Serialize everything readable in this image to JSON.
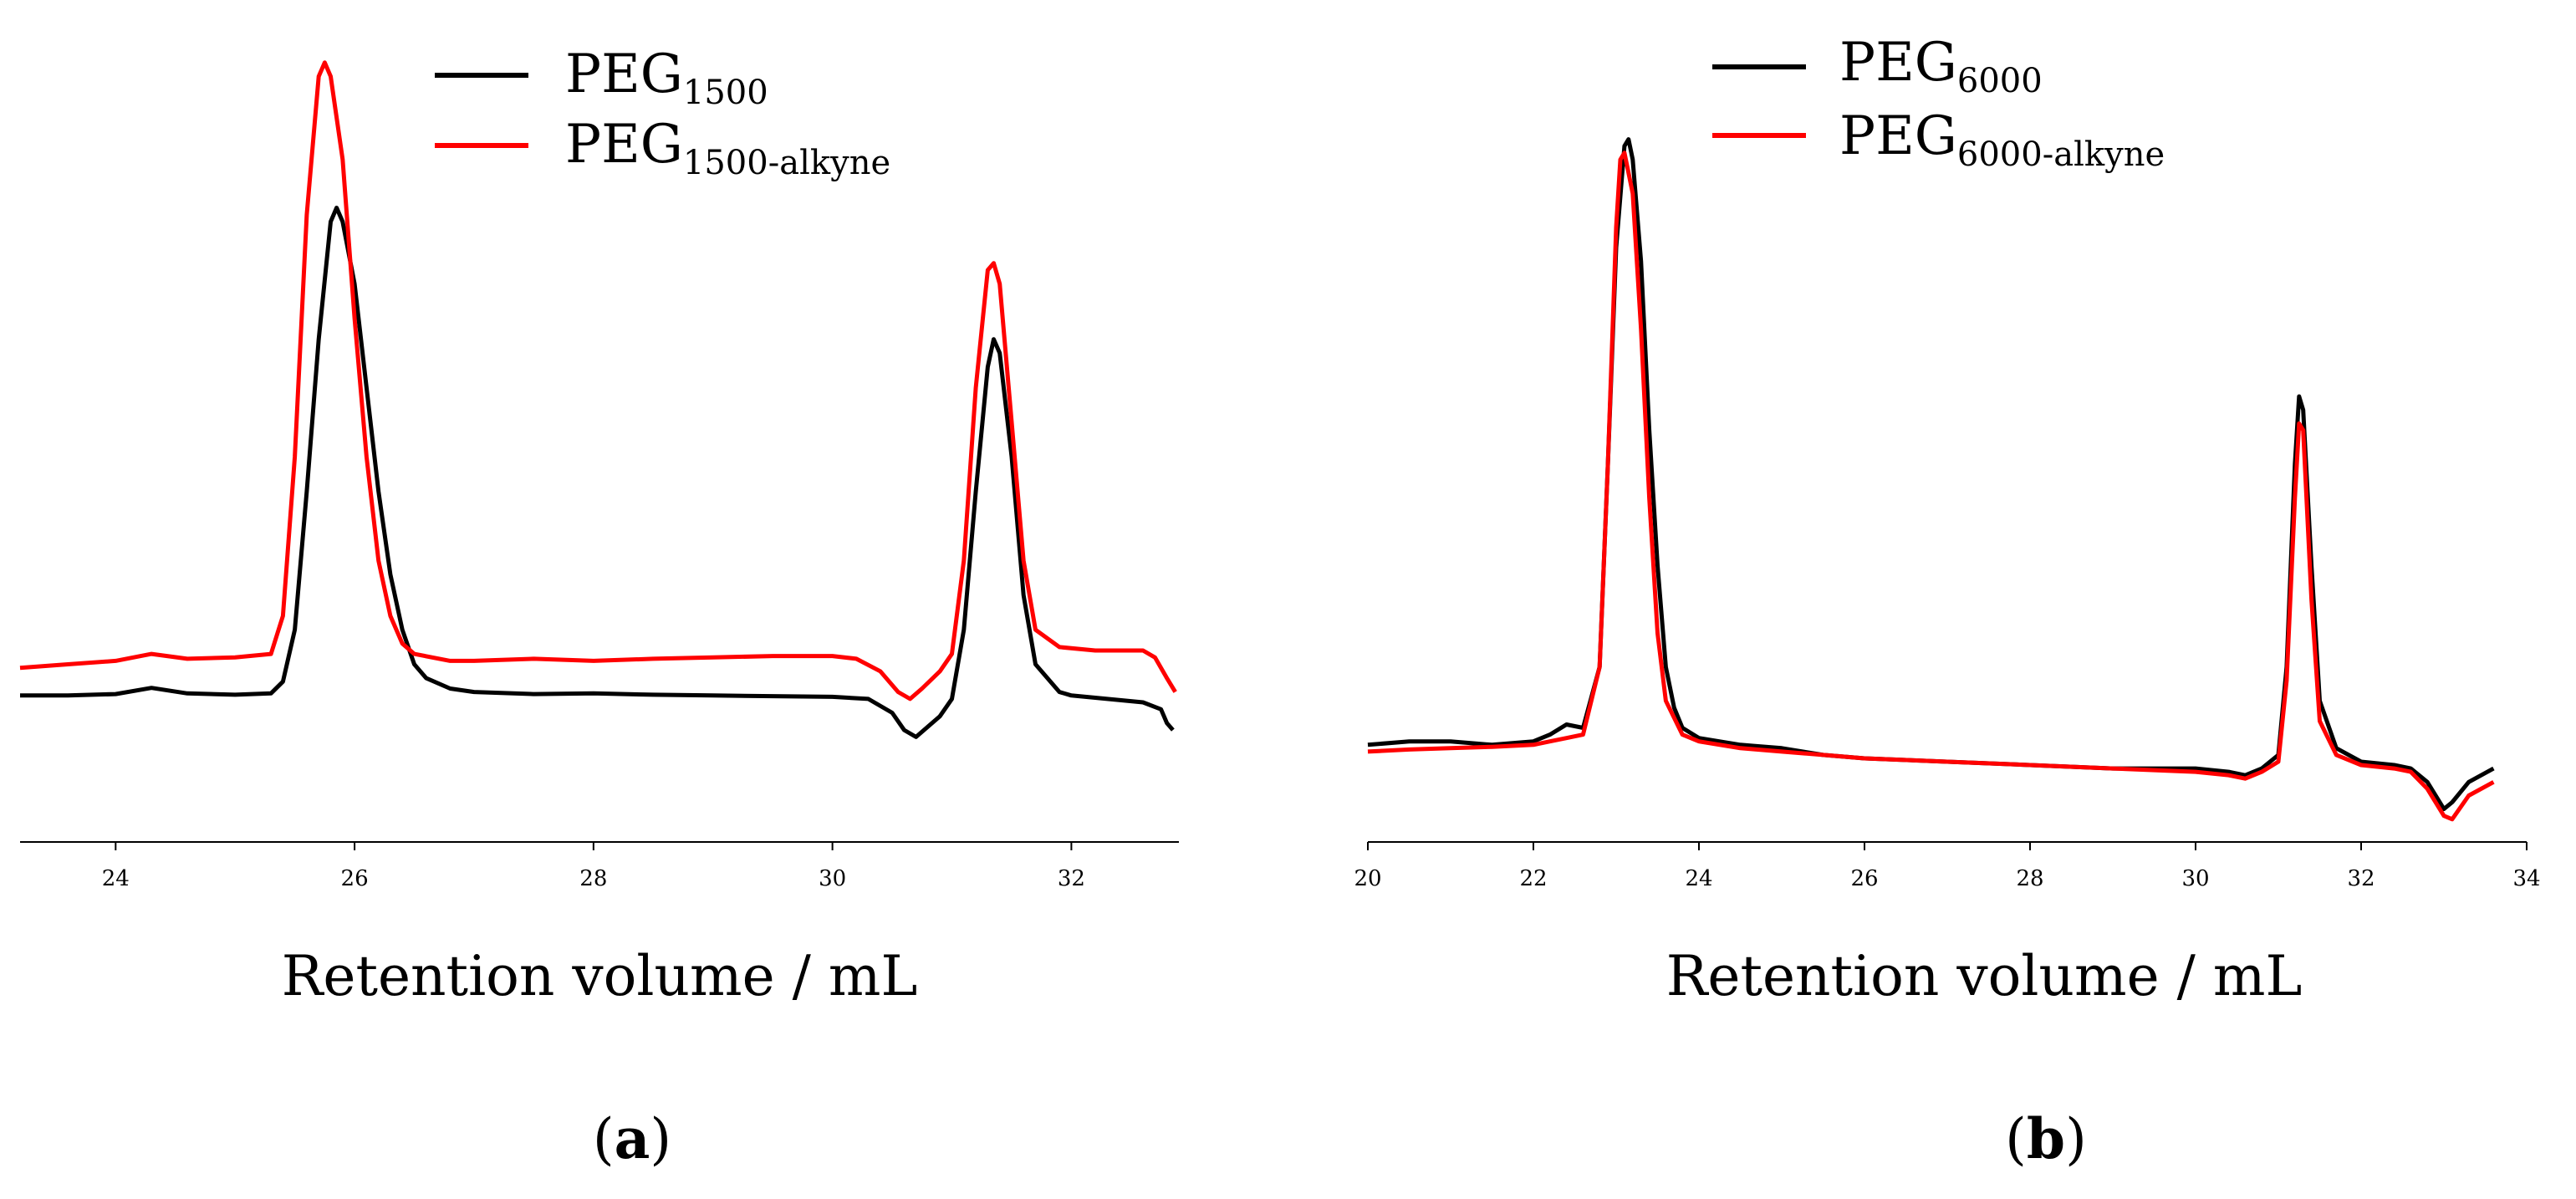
{
  "chart_data": [
    {
      "type": "line",
      "panel": "a",
      "xlabel": "Retention volume / mL",
      "ylabel": "",
      "xlim": [
        23.2,
        32.9
      ],
      "ylim": [
        -0.05,
        1.05
      ],
      "xticks": [
        24,
        26,
        28,
        30,
        32
      ],
      "grid": false,
      "legend_position": "top-center",
      "series": [
        {
          "name": "PEG",
          "subscript": "1500",
          "color": "#000000",
          "points": [
            [
              23.2,
              0.105
            ],
            [
              23.6,
              0.105
            ],
            [
              24.0,
              0.107
            ],
            [
              24.3,
              0.116
            ],
            [
              24.6,
              0.108
            ],
            [
              25.0,
              0.106
            ],
            [
              25.3,
              0.108
            ],
            [
              25.4,
              0.125
            ],
            [
              25.5,
              0.2
            ],
            [
              25.6,
              0.4
            ],
            [
              25.7,
              0.62
            ],
            [
              25.8,
              0.79
            ],
            [
              25.85,
              0.81
            ],
            [
              25.9,
              0.79
            ],
            [
              26.0,
              0.7
            ],
            [
              26.1,
              0.55
            ],
            [
              26.2,
              0.4
            ],
            [
              26.3,
              0.28
            ],
            [
              26.4,
              0.2
            ],
            [
              26.5,
              0.15
            ],
            [
              26.6,
              0.13
            ],
            [
              26.8,
              0.115
            ],
            [
              27.0,
              0.11
            ],
            [
              27.5,
              0.107
            ],
            [
              28.0,
              0.108
            ],
            [
              28.5,
              0.106
            ],
            [
              29.0,
              0.105
            ],
            [
              29.5,
              0.104
            ],
            [
              30.0,
              0.103
            ],
            [
              30.3,
              0.1
            ],
            [
              30.5,
              0.08
            ],
            [
              30.6,
              0.055
            ],
            [
              30.7,
              0.045
            ],
            [
              30.8,
              0.06
            ],
            [
              30.9,
              0.075
            ],
            [
              31.0,
              0.1
            ],
            [
              31.1,
              0.2
            ],
            [
              31.2,
              0.4
            ],
            [
              31.3,
              0.58
            ],
            [
              31.35,
              0.62
            ],
            [
              31.4,
              0.6
            ],
            [
              31.5,
              0.45
            ],
            [
              31.6,
              0.25
            ],
            [
              31.7,
              0.15
            ],
            [
              31.9,
              0.11
            ],
            [
              32.0,
              0.105
            ],
            [
              32.3,
              0.1
            ],
            [
              32.6,
              0.095
            ],
            [
              32.75,
              0.085
            ],
            [
              32.8,
              0.065
            ],
            [
              32.85,
              0.055
            ]
          ]
        },
        {
          "name": "PEG",
          "subscript": "1500-alkyne",
          "color": "#ff0000",
          "points": [
            [
              23.2,
              0.145
            ],
            [
              23.6,
              0.15
            ],
            [
              24.0,
              0.155
            ],
            [
              24.3,
              0.165
            ],
            [
              24.6,
              0.158
            ],
            [
              25.0,
              0.16
            ],
            [
              25.3,
              0.165
            ],
            [
              25.4,
              0.22
            ],
            [
              25.5,
              0.45
            ],
            [
              25.6,
              0.8
            ],
            [
              25.7,
              1.0
            ],
            [
              25.75,
              1.02
            ],
            [
              25.8,
              1.0
            ],
            [
              25.9,
              0.88
            ],
            [
              26.0,
              0.65
            ],
            [
              26.1,
              0.45
            ],
            [
              26.2,
              0.3
            ],
            [
              26.3,
              0.22
            ],
            [
              26.4,
              0.18
            ],
            [
              26.5,
              0.165
            ],
            [
              26.8,
              0.155
            ],
            [
              27.0,
              0.155
            ],
            [
              27.5,
              0.158
            ],
            [
              28.0,
              0.155
            ],
            [
              28.5,
              0.158
            ],
            [
              29.0,
              0.16
            ],
            [
              29.5,
              0.162
            ],
            [
              30.0,
              0.162
            ],
            [
              30.2,
              0.158
            ],
            [
              30.4,
              0.14
            ],
            [
              30.55,
              0.11
            ],
            [
              30.65,
              0.1
            ],
            [
              30.75,
              0.115
            ],
            [
              30.9,
              0.14
            ],
            [
              31.0,
              0.165
            ],
            [
              31.1,
              0.3
            ],
            [
              31.2,
              0.55
            ],
            [
              31.3,
              0.72
            ],
            [
              31.35,
              0.73
            ],
            [
              31.4,
              0.7
            ],
            [
              31.5,
              0.5
            ],
            [
              31.6,
              0.3
            ],
            [
              31.7,
              0.2
            ],
            [
              31.9,
              0.175
            ],
            [
              32.2,
              0.17
            ],
            [
              32.4,
              0.17
            ],
            [
              32.6,
              0.17
            ],
            [
              32.7,
              0.16
            ],
            [
              32.8,
              0.13
            ],
            [
              32.87,
              0.11
            ]
          ]
        }
      ]
    },
    {
      "type": "line",
      "panel": "b",
      "xlabel": "Retention volume / mL",
      "ylabel": "",
      "xlim": [
        20,
        34
      ],
      "ylim": [
        -0.05,
        1.05
      ],
      "xticks": [
        20,
        22,
        24,
        26,
        28,
        30,
        32,
        34
      ],
      "grid": false,
      "legend_position": "top-center",
      "series": [
        {
          "name": "PEG",
          "subscript": "6000",
          "color": "#000000",
          "points": [
            [
              20.0,
              0.085
            ],
            [
              20.5,
              0.09
            ],
            [
              21.0,
              0.09
            ],
            [
              21.5,
              0.085
            ],
            [
              22.0,
              0.09
            ],
            [
              22.2,
              0.1
            ],
            [
              22.4,
              0.115
            ],
            [
              22.6,
              0.11
            ],
            [
              22.8,
              0.2
            ],
            [
              22.9,
              0.5
            ],
            [
              23.0,
              0.82
            ],
            [
              23.1,
              0.97
            ],
            [
              23.15,
              0.98
            ],
            [
              23.2,
              0.95
            ],
            [
              23.3,
              0.8
            ],
            [
              23.4,
              0.55
            ],
            [
              23.5,
              0.35
            ],
            [
              23.6,
              0.2
            ],
            [
              23.7,
              0.14
            ],
            [
              23.8,
              0.11
            ],
            [
              24.0,
              0.095
            ],
            [
              24.5,
              0.085
            ],
            [
              25.0,
              0.08
            ],
            [
              25.5,
              0.07
            ],
            [
              26.0,
              0.065
            ],
            [
              27.0,
              0.06
            ],
            [
              28.0,
              0.055
            ],
            [
              29.0,
              0.05
            ],
            [
              30.0,
              0.05
            ],
            [
              30.4,
              0.045
            ],
            [
              30.6,
              0.04
            ],
            [
              30.8,
              0.05
            ],
            [
              31.0,
              0.07
            ],
            [
              31.1,
              0.2
            ],
            [
              31.2,
              0.5
            ],
            [
              31.25,
              0.6
            ],
            [
              31.3,
              0.58
            ],
            [
              31.4,
              0.35
            ],
            [
              31.5,
              0.15
            ],
            [
              31.7,
              0.08
            ],
            [
              32.0,
              0.06
            ],
            [
              32.4,
              0.055
            ],
            [
              32.6,
              0.05
            ],
            [
              32.8,
              0.03
            ],
            [
              33.0,
              -0.01
            ],
            [
              33.1,
              0.0
            ],
            [
              33.3,
              0.03
            ],
            [
              33.6,
              0.05
            ]
          ]
        },
        {
          "name": "PEG",
          "subscript": "6000-alkyne",
          "color": "#ff0000",
          "points": [
            [
              20.0,
              0.075
            ],
            [
              20.5,
              0.078
            ],
            [
              21.0,
              0.08
            ],
            [
              21.5,
              0.082
            ],
            [
              22.0,
              0.085
            ],
            [
              22.2,
              0.09
            ],
            [
              22.4,
              0.095
            ],
            [
              22.6,
              0.1
            ],
            [
              22.8,
              0.2
            ],
            [
              22.9,
              0.5
            ],
            [
              23.0,
              0.85
            ],
            [
              23.05,
              0.95
            ],
            [
              23.1,
              0.96
            ],
            [
              23.2,
              0.9
            ],
            [
              23.3,
              0.7
            ],
            [
              23.4,
              0.45
            ],
            [
              23.5,
              0.25
            ],
            [
              23.6,
              0.15
            ],
            [
              23.8,
              0.1
            ],
            [
              24.0,
              0.09
            ],
            [
              24.5,
              0.08
            ],
            [
              25.0,
              0.075
            ],
            [
              25.5,
              0.07
            ],
            [
              26.0,
              0.065
            ],
            [
              27.0,
              0.06
            ],
            [
              28.0,
              0.055
            ],
            [
              29.0,
              0.05
            ],
            [
              30.0,
              0.045
            ],
            [
              30.4,
              0.04
            ],
            [
              30.6,
              0.035
            ],
            [
              30.8,
              0.045
            ],
            [
              31.0,
              0.06
            ],
            [
              31.1,
              0.18
            ],
            [
              31.2,
              0.45
            ],
            [
              31.25,
              0.56
            ],
            [
              31.3,
              0.55
            ],
            [
              31.4,
              0.3
            ],
            [
              31.5,
              0.12
            ],
            [
              31.7,
              0.07
            ],
            [
              32.0,
              0.055
            ],
            [
              32.4,
              0.05
            ],
            [
              32.6,
              0.045
            ],
            [
              32.8,
              0.02
            ],
            [
              33.0,
              -0.02
            ],
            [
              33.1,
              -0.025
            ],
            [
              33.3,
              0.01
            ],
            [
              33.6,
              0.03
            ]
          ]
        }
      ]
    }
  ],
  "panel_labels": {
    "a": {
      "open": "(",
      "letter": "a",
      "close": ")"
    },
    "b": {
      "open": "(",
      "letter": "b",
      "close": ")"
    }
  }
}
